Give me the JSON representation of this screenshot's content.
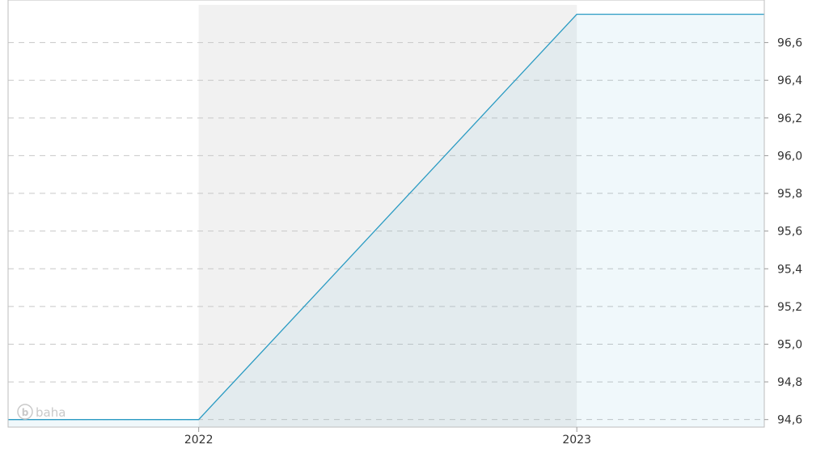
{
  "chart_data": {
    "type": "area",
    "x": [
      "2021-07-01",
      "2022-01-01",
      "2023-01-01",
      "2023-07-01"
    ],
    "series": [
      {
        "values": [
          94.6,
          94.6,
          96.75,
          96.75
        ],
        "color": "#2a9bc3"
      }
    ],
    "x_ticks": [
      {
        "date": "2022-01-01",
        "label": "2022"
      },
      {
        "date": "2023-01-01",
        "label": "2023"
      }
    ],
    "y_ticks": [
      94.6,
      94.8,
      95.0,
      95.2,
      95.4,
      95.6,
      95.8,
      96.0,
      96.2,
      96.4,
      96.6
    ],
    "y_tick_labels": [
      "94,6",
      "94,8",
      "95,0",
      "95,2",
      "95,4",
      "95,6",
      "95,8",
      "96,0",
      "96,2",
      "96,4",
      "96,6"
    ],
    "xlim": [
      "2021-07-01",
      "2023-07-01"
    ],
    "ylim": [
      94.56,
      96.8
    ],
    "y_axis_side": "right",
    "grid": true,
    "shaded_year_band": {
      "from": "2022-01-01",
      "to": "2023-01-01",
      "color": "#f1f1f1"
    },
    "fill_color": "#2a9bc3",
    "watermark": "baha"
  }
}
